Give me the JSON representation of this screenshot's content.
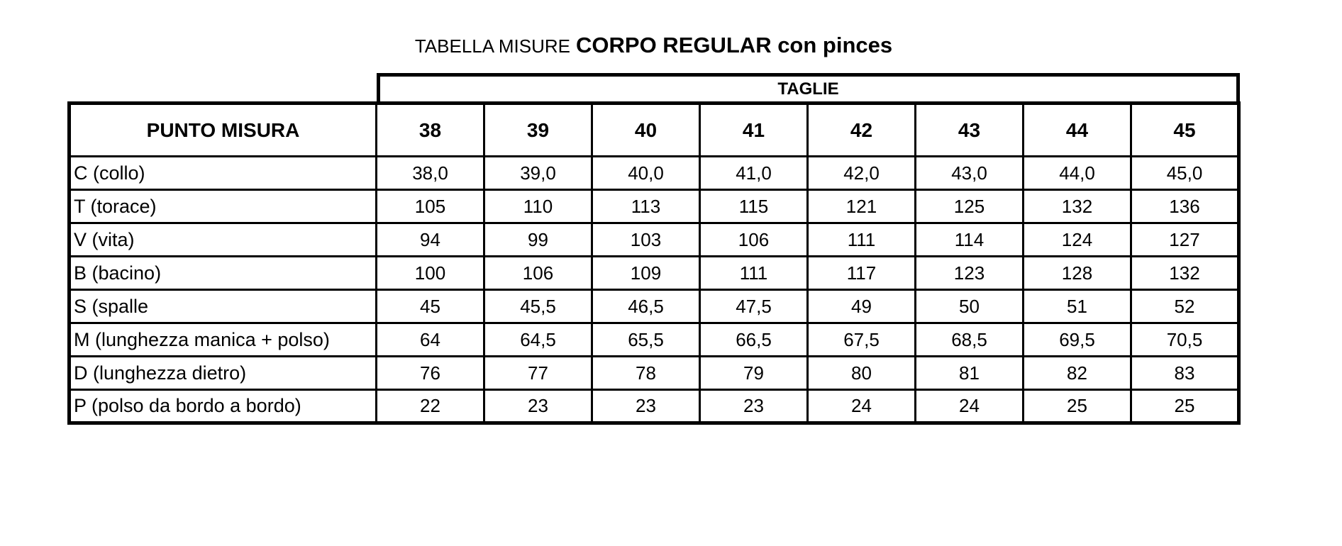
{
  "title": {
    "prefix": "TABELLA MISURE",
    "bold": "CORPO REGULAR con pinces"
  },
  "table": {
    "taglie_header": "TAGLIE",
    "corner_header": "PUNTO MISURA",
    "sizes": [
      "38",
      "39",
      "40",
      "41",
      "42",
      "43",
      "44",
      "45"
    ],
    "rows": [
      {
        "label": "C (collo)",
        "values": [
          "38,0",
          "39,0",
          "40,0",
          "41,0",
          "42,0",
          "43,0",
          "44,0",
          "45,0"
        ]
      },
      {
        "label": "T (torace)",
        "values": [
          "105",
          "110",
          "113",
          "115",
          "121",
          "125",
          "132",
          "136"
        ]
      },
      {
        "label": "V (vita)",
        "values": [
          "94",
          "99",
          "103",
          "106",
          "111",
          "114",
          "124",
          "127"
        ]
      },
      {
        "label": "B (bacino)",
        "values": [
          "100",
          "106",
          "109",
          "111",
          "117",
          "123",
          "128",
          "132"
        ]
      },
      {
        "label": "S (spalle",
        "values": [
          "45",
          "45,5",
          "46,5",
          "47,5",
          "49",
          "50",
          "51",
          "52"
        ]
      },
      {
        "label": "M (lunghezza manica + polso)",
        "values": [
          "64",
          "64,5",
          "65,5",
          "66,5",
          "67,5",
          "68,5",
          "69,5",
          "70,5"
        ]
      },
      {
        "label": "D (lunghezza dietro)",
        "values": [
          "76",
          "77",
          "78",
          "79",
          "80",
          "81",
          "82",
          "83"
        ]
      },
      {
        "label": "P (polso da bordo a bordo)",
        "values": [
          "22",
          "23",
          "23",
          "23",
          "24",
          "24",
          "25",
          "25"
        ]
      }
    ]
  },
  "colors": {
    "background": "#ffffff",
    "border": "#000000",
    "text": "#000000"
  }
}
